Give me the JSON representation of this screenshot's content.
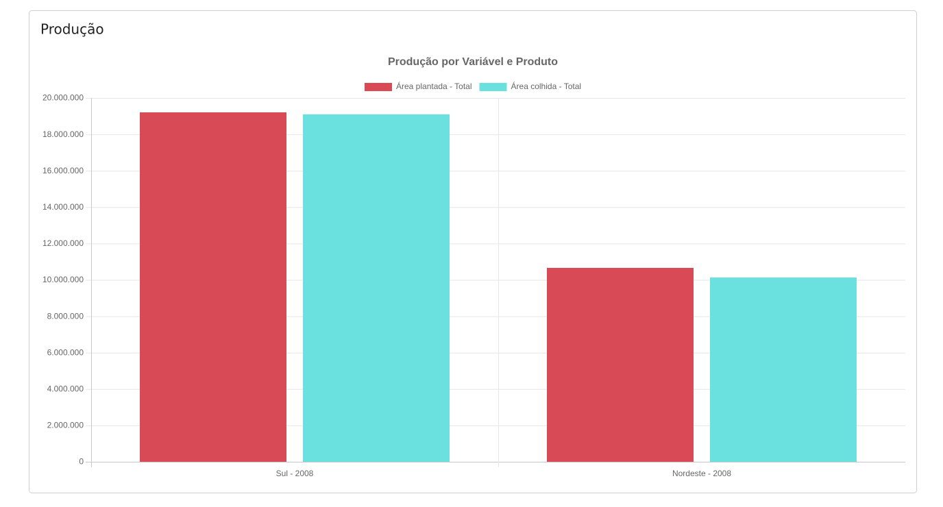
{
  "card": {
    "title": "Produção"
  },
  "chart_data": {
    "type": "bar",
    "title": "Produção por Variável e Produto",
    "categories": [
      "Sul - 2008",
      "Nordeste - 2008"
    ],
    "series": [
      {
        "name": "Área plantada - Total",
        "color": "#d84a56",
        "values": [
          19210000,
          10660000
        ]
      },
      {
        "name": "Área colhida - Total",
        "color": "#6ae1df",
        "values": [
          19100000,
          10130000
        ]
      }
    ],
    "ylim": [
      0,
      20000000
    ],
    "yticks": [
      0,
      {
        "value": 2000000,
        "label": "2.000.000"
      },
      {
        "value": 4000000,
        "label": "4.000.000"
      },
      {
        "value": 6000000,
        "label": "6.000.000"
      },
      {
        "value": 8000000,
        "label": "8.000.000"
      },
      {
        "value": 10000000,
        "label": "10.000.000"
      },
      {
        "value": 12000000,
        "label": "12.000.000"
      },
      {
        "value": 14000000,
        "label": "14.000.000"
      },
      {
        "value": 16000000,
        "label": "16.000.000"
      },
      {
        "value": 18000000,
        "label": "18.000.000"
      },
      {
        "value": 20000000,
        "label": "20.000.000"
      }
    ],
    "grid": true,
    "legend": "top"
  }
}
